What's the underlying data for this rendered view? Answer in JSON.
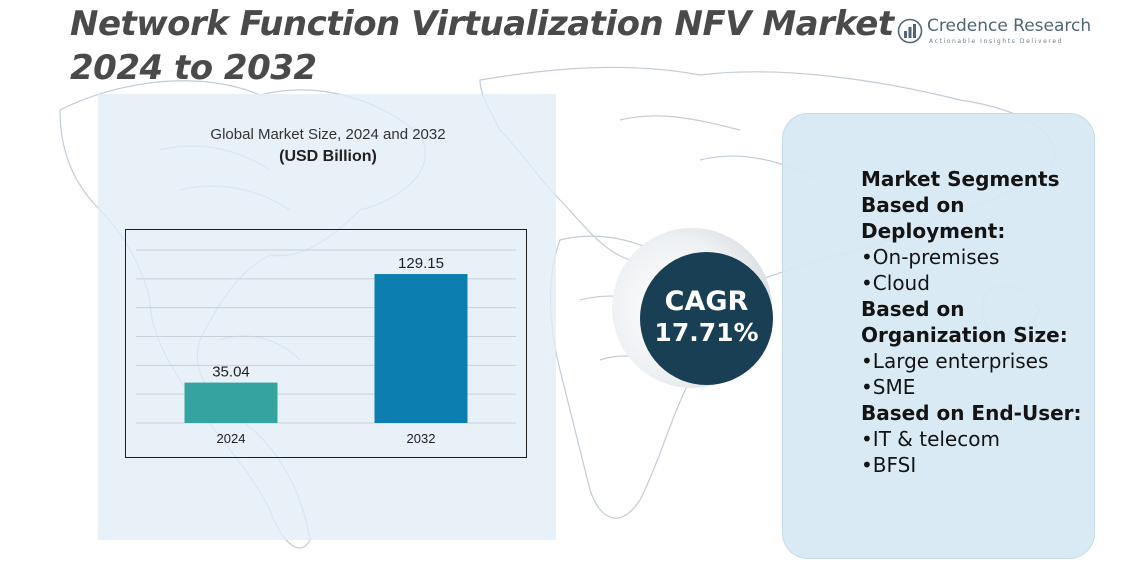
{
  "header": {
    "title": "Network Function Virtualization NFV Market 2024 to 2032"
  },
  "logo": {
    "name": "Credence Research",
    "tagline": "Actionable Insights Delivered"
  },
  "chart_data": {
    "type": "bar",
    "title": "Global Market Size, 2024 and 2032",
    "subtitle": "(USD Billion)",
    "categories": [
      "2024",
      "2032"
    ],
    "values": [
      35.04,
      129.15
    ],
    "value_labels": [
      "35.04",
      "129.15"
    ],
    "ylim": [
      0,
      150
    ],
    "grid": true,
    "legend": "none",
    "colors": [
      "#35a3a0",
      "#0c7fb0"
    ]
  },
  "cagr": {
    "label": "CAGR",
    "value": "17.71%"
  },
  "segments": {
    "groups": [
      {
        "heading": "Market Segments Based on Deployment:",
        "items": [
          "•On-premises",
          "•Cloud"
        ]
      },
      {
        "heading": "Based on Organization Size:",
        "items": [
          "•Large enterprises",
          "•SME"
        ]
      },
      {
        "heading": "Based on End-User:",
        "items": [
          "•IT & telecom",
          "•BFSI"
        ]
      }
    ]
  },
  "colors": {
    "title": "#4a4a4a",
    "cagr_bg": "#183f53",
    "panel_bg": "#d7e8f3",
    "map": "#b9c6d1"
  }
}
